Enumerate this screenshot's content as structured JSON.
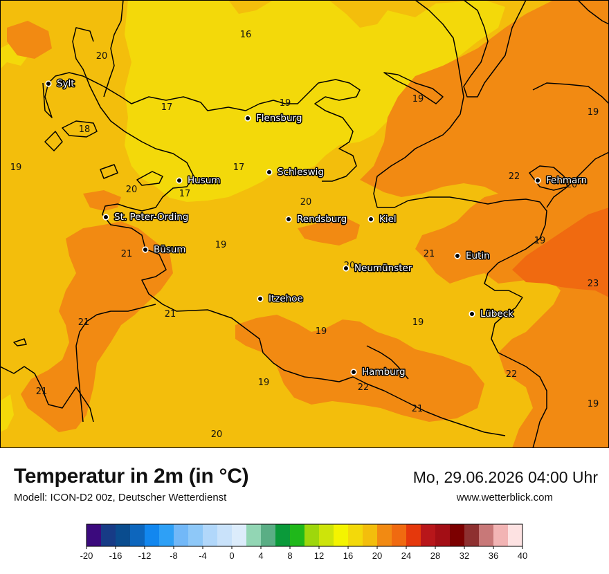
{
  "title": "Temperatur in 2m (in °C)",
  "subtitle": "Modell: ICON-D2 00z, Deutscher Wetterdienst",
  "datetime": "Mo, 29.06.2026 04:00 Uhr",
  "website": "www.wetterblick.com",
  "colors": {
    "t16": "#f3d90a",
    "t18": "#f3be0c",
    "t20": "#f28a12",
    "t22": "#f06a10",
    "coast": "#000000"
  },
  "cities": [
    {
      "name": "Sylt"
    },
    {
      "name": "Flensburg"
    },
    {
      "name": "Schleswig"
    },
    {
      "name": "Husum"
    },
    {
      "name": "Fehmarn"
    },
    {
      "name": "St. Peter-Ording"
    },
    {
      "name": "Rendsburg"
    },
    {
      "name": "Kiel"
    },
    {
      "name": "Büsum"
    },
    {
      "name": "Eutin"
    },
    {
      "name": "Neumünster"
    },
    {
      "name": "Itzehoe"
    },
    {
      "name": "Lübeck"
    },
    {
      "name": "Hamburg"
    }
  ],
  "temps": [
    "16",
    "20",
    "17",
    "19",
    "19",
    "18",
    "19",
    "17",
    "22",
    "20",
    "20",
    "17",
    "20",
    "21",
    "19",
    "19",
    "21",
    "23",
    "21",
    "21",
    "19",
    "19",
    "22",
    "19",
    "21",
    "22",
    "19",
    "21",
    "20"
  ],
  "legend": {
    "ticks": [
      "-20",
      "-16",
      "-12",
      "-8",
      "-4",
      "0",
      "4",
      "8",
      "12",
      "16",
      "20",
      "24",
      "28",
      "32",
      "36",
      "40"
    ],
    "colors": [
      "#3b0a7d",
      "#173b86",
      "#0a4c8e",
      "#0d66bd",
      "#1287ef",
      "#2ea0f6",
      "#72b8f8",
      "#8ec8f8",
      "#b1d7fa",
      "#c9e2fa",
      "#dcecfb",
      "#92d6b4",
      "#5aae85",
      "#0a9a3a",
      "#1fb81a",
      "#9ed70c",
      "#cde40a",
      "#f4f400",
      "#f3d90a",
      "#f3be0c",
      "#f28a12",
      "#f06a10",
      "#e5380c",
      "#b8161a",
      "#a30e15",
      "#7c0000",
      "#8e3030",
      "#c87878",
      "#f2b4b4",
      "#fde2e2"
    ]
  }
}
